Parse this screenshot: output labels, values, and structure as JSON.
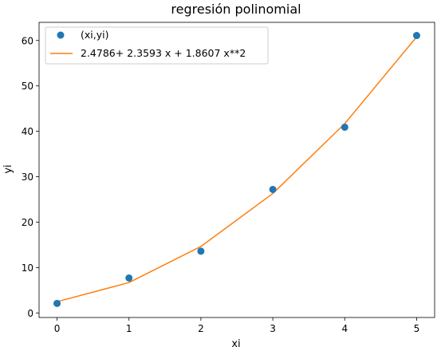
{
  "chart_data": {
    "type": "scatter",
    "title": "regresión polinomial",
    "xlabel": "xi",
    "ylabel": "yi",
    "xlim": [
      -0.25,
      5.25
    ],
    "ylim": [
      -1.0,
      64.0
    ],
    "x_ticks": [
      "0",
      "1",
      "2",
      "3",
      "4",
      "5"
    ],
    "y_ticks": [
      "0",
      "10",
      "20",
      "30",
      "40",
      "50",
      "60"
    ],
    "grid": false,
    "legend_position": "top-left",
    "series": [
      {
        "name": "(xi,yi)",
        "kind": "points",
        "color": "#1f77b4",
        "x": [
          0,
          1,
          2,
          3,
          4,
          5
        ],
        "y": [
          2.1,
          7.7,
          13.6,
          27.2,
          40.9,
          61.1
        ]
      },
      {
        "name": "2.4786+ 2.3593 x + 1.8607 x**2",
        "kind": "line",
        "color": "#ff7f0e",
        "x": [
          0,
          1,
          2,
          3,
          4,
          5
        ],
        "y": [
          2.4786,
          6.6986,
          14.64,
          26.3028,
          41.687,
          60.7926
        ]
      }
    ]
  }
}
